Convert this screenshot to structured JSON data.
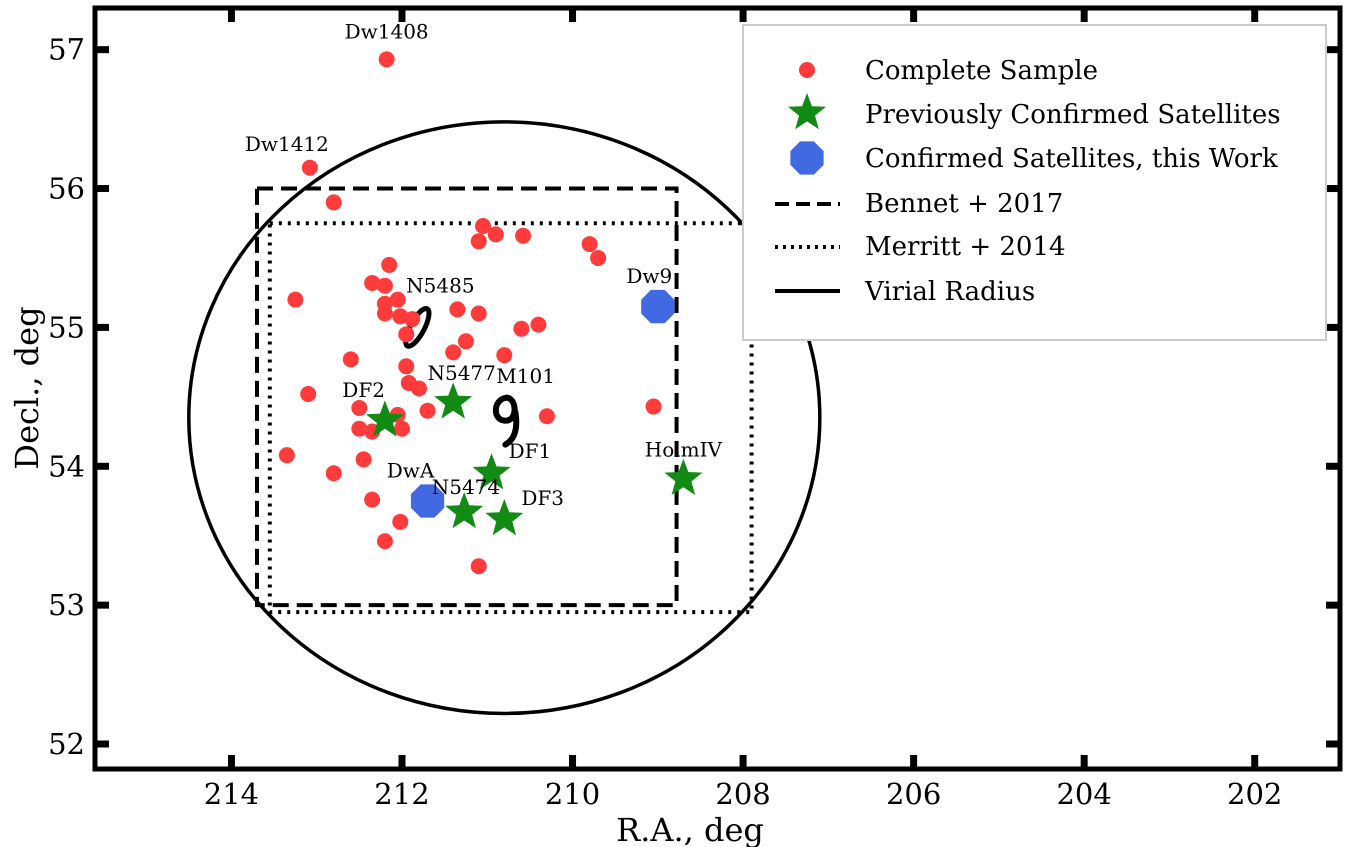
{
  "chart_data": {
    "type": "scatter",
    "xlabel": "R.A., deg",
    "ylabel": "Decl., deg",
    "xlim": [
      215.6,
      201.0
    ],
    "ylim": [
      51.82,
      57.3
    ],
    "x_ticks": [
      "214",
      "212",
      "210",
      "208",
      "206",
      "204",
      "202"
    ],
    "y_ticks": [
      "52",
      "53",
      "54",
      "55",
      "56",
      "57"
    ],
    "grid": false,
    "legend_position": "top-right",
    "legend": {
      "complete": "Complete Sample",
      "previous": "Previously Confirmed Satellites",
      "thiswork": "Confirmed Satellites, this Work",
      "bennet": "Bennet + 2017",
      "merritt": "Merritt + 2014",
      "virial": "Virial Radius"
    },
    "complete_sample": [
      [
        212.18,
        56.93
      ],
      [
        213.08,
        56.15
      ],
      [
        212.8,
        55.9
      ],
      [
        211.05,
        55.73
      ],
      [
        210.9,
        55.67
      ],
      [
        210.58,
        55.66
      ],
      [
        211.1,
        55.62
      ],
      [
        209.8,
        55.6
      ],
      [
        209.7,
        55.5
      ],
      [
        212.15,
        55.45
      ],
      [
        212.35,
        55.32
      ],
      [
        212.2,
        55.3
      ],
      [
        213.25,
        55.2
      ],
      [
        212.05,
        55.2
      ],
      [
        212.2,
        55.17
      ],
      [
        211.35,
        55.13
      ],
      [
        212.2,
        55.1
      ],
      [
        211.1,
        55.1
      ],
      [
        212.02,
        55.08
      ],
      [
        211.88,
        55.06
      ],
      [
        210.4,
        55.02
      ],
      [
        210.6,
        54.99
      ],
      [
        211.95,
        54.95
      ],
      [
        211.25,
        54.9
      ],
      [
        211.4,
        54.82
      ],
      [
        210.8,
        54.8
      ],
      [
        212.6,
        54.77
      ],
      [
        211.95,
        54.72
      ],
      [
        211.92,
        54.6
      ],
      [
        211.8,
        54.56
      ],
      [
        213.1,
        54.52
      ],
      [
        209.05,
        54.43
      ],
      [
        212.5,
        54.42
      ],
      [
        211.7,
        54.4
      ],
      [
        212.05,
        54.37
      ],
      [
        210.3,
        54.36
      ],
      [
        212.5,
        54.27
      ],
      [
        212.0,
        54.27
      ],
      [
        212.35,
        54.25
      ],
      [
        213.35,
        54.08
      ],
      [
        212.45,
        54.05
      ],
      [
        212.8,
        53.95
      ],
      [
        212.35,
        53.76
      ],
      [
        212.02,
        53.6
      ],
      [
        212.2,
        53.46
      ],
      [
        211.1,
        53.28
      ]
    ],
    "previously_confirmed": [
      {
        "name": "DF2",
        "ra": 212.2,
        "dec": 54.33
      },
      {
        "name": "N5477",
        "ra": 211.4,
        "dec": 54.46
      },
      {
        "name": "DF1",
        "ra": 210.95,
        "dec": 53.95
      },
      {
        "name": "N5474",
        "ra": 211.27,
        "dec": 53.67
      },
      {
        "name": "DF3",
        "ra": 210.8,
        "dec": 53.62
      },
      {
        "name": "HolmIV",
        "ra": 208.7,
        "dec": 53.91
      }
    ],
    "confirmed_this_work": [
      {
        "name": "Dw9",
        "ra": 209.0,
        "dec": 55.15
      },
      {
        "name": "DwA",
        "ra": 211.7,
        "dec": 53.75
      }
    ],
    "text_labels": [
      {
        "text": "Dw1408",
        "ra": 212.18,
        "dec": 57.08
      },
      {
        "text": "Dw1412",
        "ra": 213.35,
        "dec": 56.27
      },
      {
        "text": "N5485",
        "ra": 211.55,
        "dec": 55.25
      },
      {
        "text": "M101",
        "ra": 210.55,
        "dec": 54.6
      },
      {
        "text": "DF2",
        "ra": 212.45,
        "dec": 54.5
      },
      {
        "text": "N5477",
        "ra": 211.3,
        "dec": 54.62
      },
      {
        "text": "DF1",
        "ra": 210.5,
        "dec": 54.06
      },
      {
        "text": "N5474",
        "ra": 211.25,
        "dec": 53.8
      },
      {
        "text": "DF3",
        "ra": 210.35,
        "dec": 53.72
      },
      {
        "text": "DwA",
        "ra": 211.9,
        "dec": 53.92
      },
      {
        "text": "Dw9",
        "ra": 209.1,
        "dec": 55.32
      },
      {
        "text": "HolmIV",
        "ra": 208.7,
        "dec": 54.07
      }
    ],
    "bennet_2017_box": {
      "ra_min": 208.78,
      "ra_max": 213.7,
      "dec_min": 53.0,
      "dec_max": 56.0
    },
    "merritt_2014_box": {
      "ra_min": 207.9,
      "ra_max": 213.55,
      "dec_min": 52.95,
      "dec_max": 55.75
    },
    "virial_radius": {
      "ra_center": 210.8,
      "dec_center": 54.35,
      "ra_radius": 3.7,
      "dec_radius": 2.13
    },
    "m101_ra": 210.8,
    "m101_dec": 54.35,
    "n5485_ra": 211.82,
    "n5485_dec": 55.0
  }
}
